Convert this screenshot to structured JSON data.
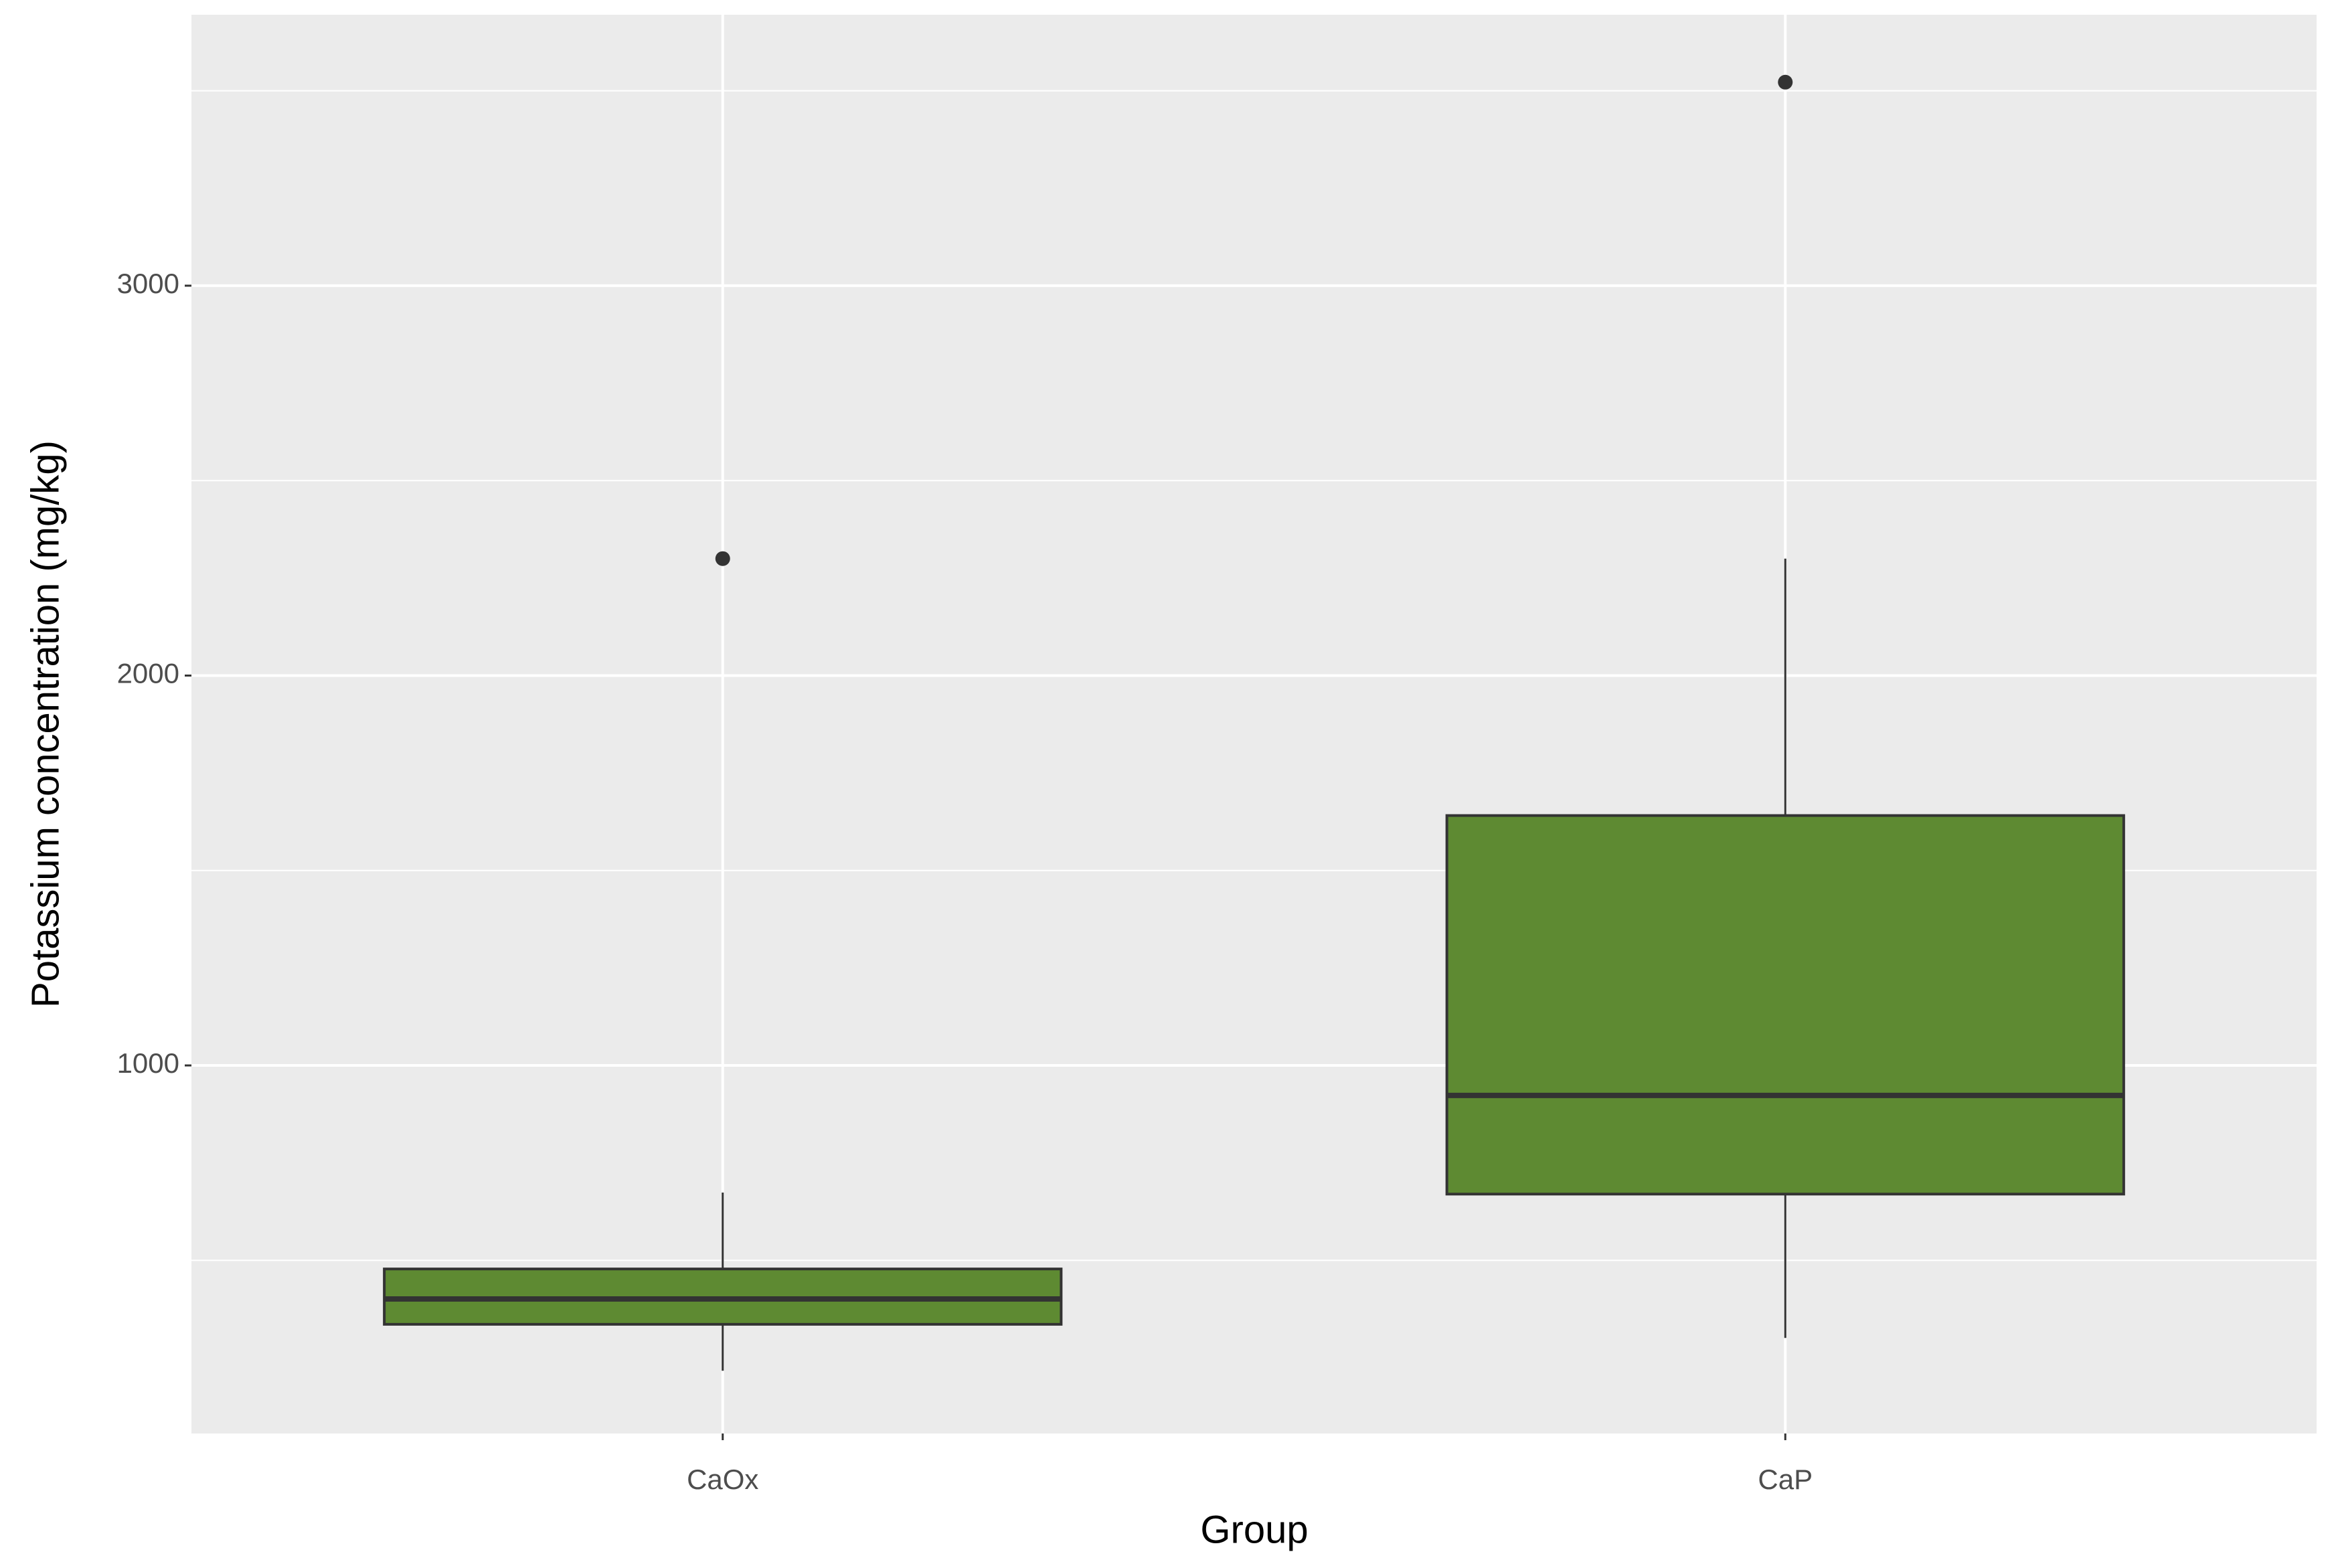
{
  "chart_data": {
    "type": "box",
    "x_label": "Group",
    "y_label": "Potassium concentration (mg/kg)",
    "categories": [
      "CaOx",
      "CaP"
    ],
    "boxes": [
      {
        "whislo": 217,
        "q1": 336,
        "median": 401,
        "q3": 478,
        "whishi": 674,
        "outliers": [
          2300
        ]
      },
      {
        "whislo": 301,
        "q1": 670,
        "median": 923,
        "q3": 1641,
        "whishi": 2300,
        "outliers": [
          3522
        ]
      }
    ],
    "color": "#5e8a32",
    "line_color": "#333333",
    "ylim": [
      56,
      3695
    ],
    "yticks": [
      1000,
      2000,
      3000
    ],
    "grid": true
  }
}
